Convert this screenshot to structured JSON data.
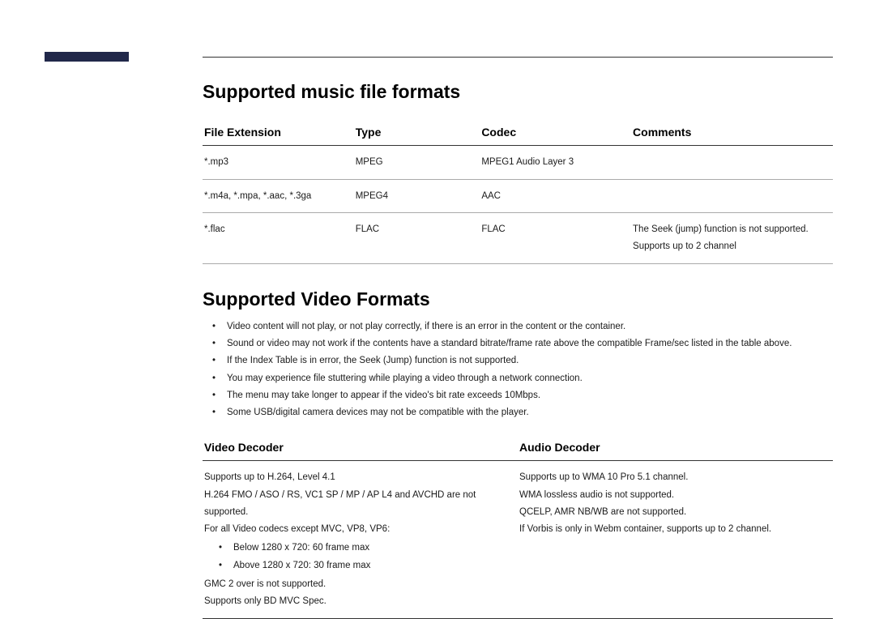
{
  "accent": {
    "color": "#21284a"
  },
  "musicSection": {
    "title": "Supported music file formats",
    "headers": [
      "File Extension",
      "Type",
      "Codec",
      "Comments"
    ],
    "rows": [
      {
        "ext": "*.mp3",
        "type": "MPEG",
        "codec": "MPEG1 Audio Layer 3",
        "comments": ""
      },
      {
        "ext": "*.m4a, *.mpa, *.aac, *.3ga",
        "type": "MPEG4",
        "codec": "AAC",
        "comments": ""
      },
      {
        "ext": "*.flac",
        "type": "FLAC",
        "codec": "FLAC",
        "comments": "The Seek (jump) function is not supported.\nSupports up to 2 channel"
      }
    ]
  },
  "videoSection": {
    "title": "Supported Video Formats",
    "notes": [
      "Video content will not play, or not play correctly, if there is an error in the content or the container.",
      "Sound or video may not work if the contents have a standard bitrate/frame rate above the compatible Frame/sec listed in the table above.",
      "If the Index Table is in error, the Seek (Jump) function is not supported.",
      "You may experience file stuttering while playing a video through a network connection.",
      "The menu may take longer to appear if the video's bit rate exceeds 10Mbps.",
      "Some USB/digital camera devices may not be compatible with the player."
    ],
    "decoderHeaders": [
      "Video Decoder",
      "Audio Decoder"
    ],
    "videoDecoder": {
      "l1": "Supports up to H.264, Level 4.1",
      "l2": "H.264 FMO / ASO / RS, VC1 SP / MP / AP L4 and AVCHD are not supported.",
      "l3": "For all Video codecs except MVC, VP8, VP6:",
      "sub1": "Below 1280 x 720: 60 frame max",
      "sub2": "Above 1280 x 720: 30 frame max",
      "l4": "GMC 2 over is not supported.",
      "l5": "Supports only BD MVC Spec."
    },
    "audioDecoder": {
      "l1": "Supports up to WMA 10 Pro 5.1 channel.",
      "l2": "WMA lossless audio is not supported.",
      "l3": "QCELP, AMR NB/WB are not supported.",
      "l4": "If Vorbis is only in Webm container, supports up to 2 channel."
    }
  }
}
